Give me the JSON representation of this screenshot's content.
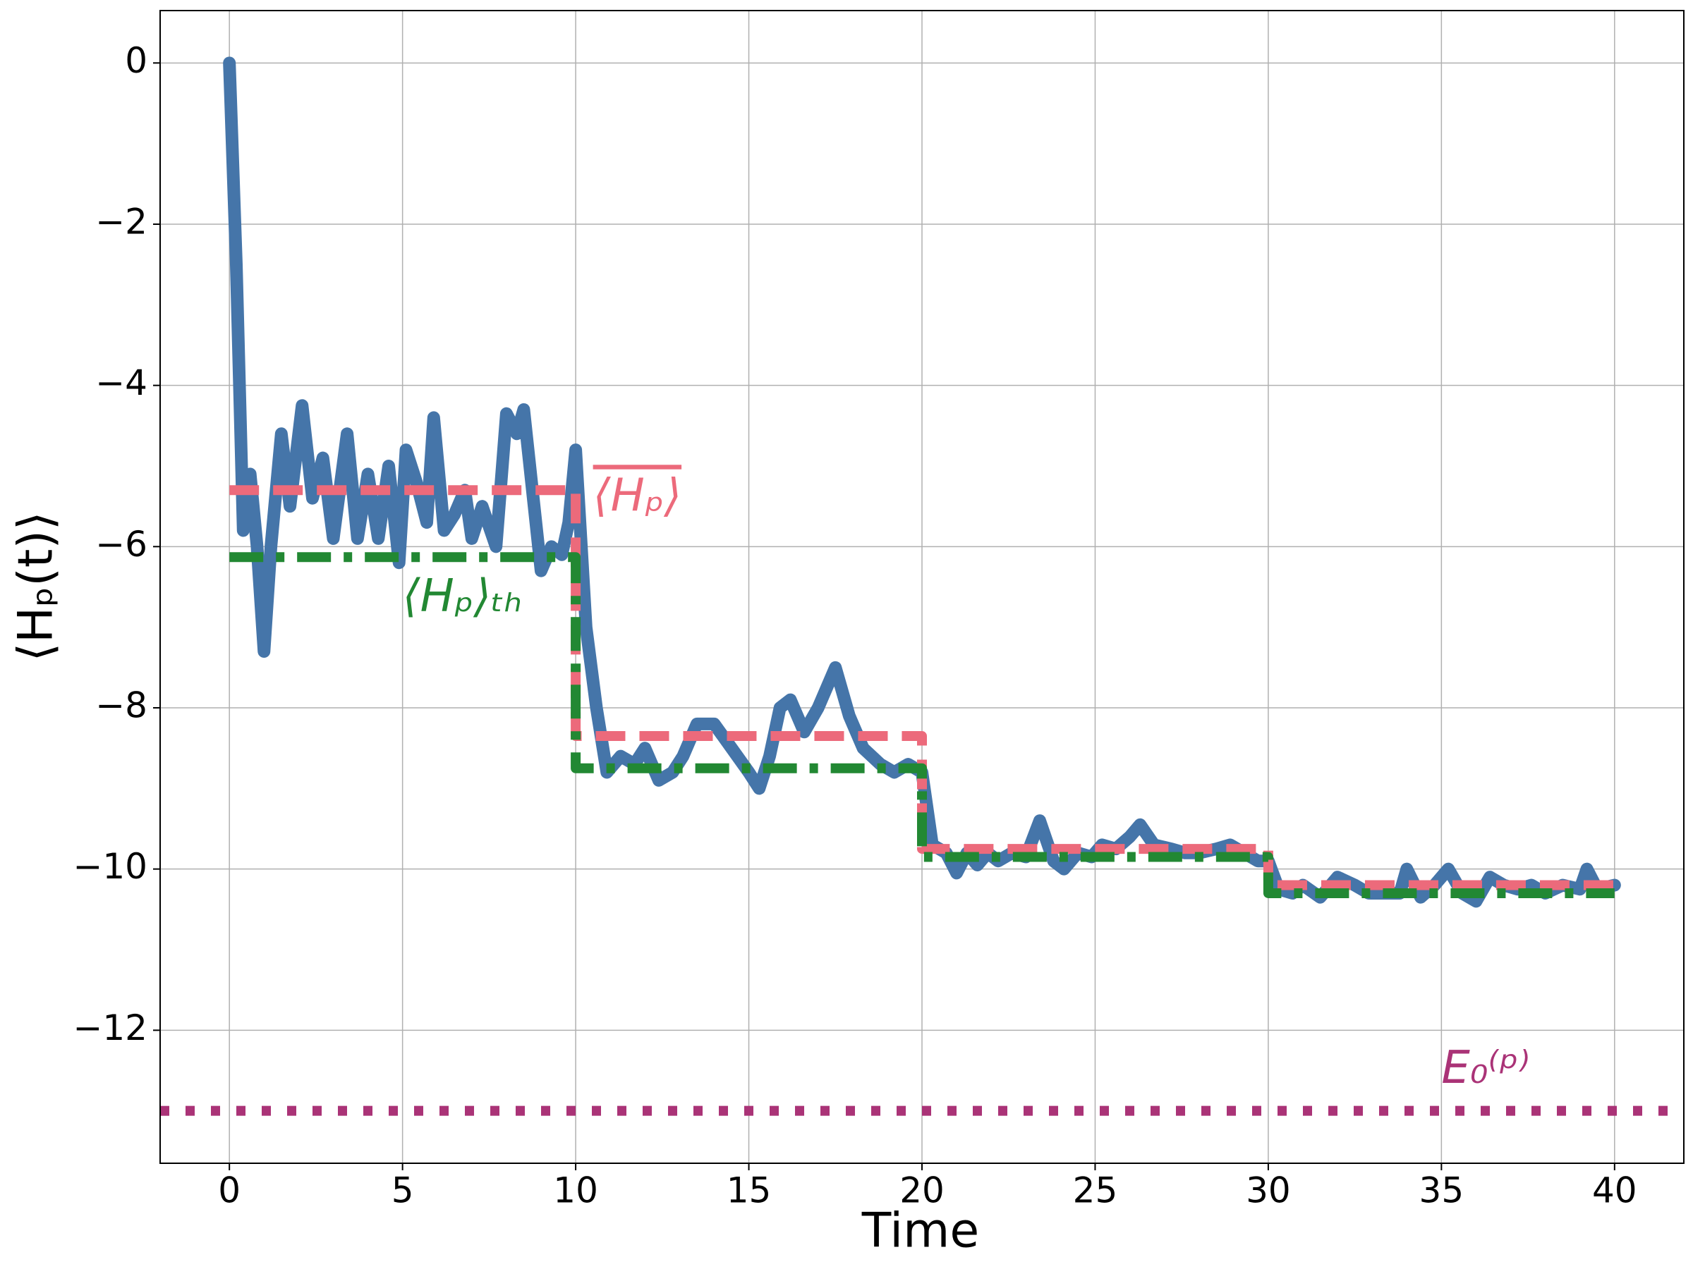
{
  "chart_data": {
    "type": "line",
    "xlabel": "Time",
    "ylabel": "⟨Hₚ(t)⟩",
    "xlim": [
      -2,
      42
    ],
    "ylim": [
      -13.65,
      0.65
    ],
    "xticks": [
      0,
      5,
      10,
      15,
      20,
      25,
      30,
      35,
      40
    ],
    "yticks": [
      0,
      {
        "value": -2,
        "label": "−2"
      },
      {
        "value": -4,
        "label": "−4"
      },
      {
        "value": -6,
        "label": "−6"
      },
      {
        "value": -8,
        "label": "−8"
      },
      {
        "value": -10,
        "label": "−10"
      },
      {
        "value": -12,
        "label": "−12"
      }
    ],
    "grid": true,
    "series": [
      {
        "color": "#4575a9",
        "style": "solid",
        "x": [
          0,
          0.2,
          0.4,
          0.6,
          0.8,
          1.0,
          1.2,
          1.5,
          1.75,
          2.1,
          2.4,
          2.7,
          3.0,
          3.4,
          3.7,
          4.0,
          4.3,
          4.6,
          4.9,
          5.1,
          5.4,
          5.7,
          5.9,
          6.2,
          6.5,
          6.8,
          7.0,
          7.3,
          7.7,
          8.0,
          8.3,
          8.5,
          8.8,
          9.0,
          9.3,
          9.6,
          9.8,
          10.0,
          10.3,
          10.6,
          10.9,
          11.3,
          11.7,
          12.0,
          12.4,
          12.8,
          13.1,
          13.5,
          14.0,
          14.5,
          15.0,
          15.3,
          15.6,
          15.9,
          16.2,
          16.6,
          17.0,
          17.5,
          17.9,
          18.3,
          18.8,
          19.2,
          19.6,
          20.0,
          20.3,
          20.7,
          21.0,
          21.3,
          21.6,
          21.9,
          22.2,
          22.6,
          23.0,
          23.4,
          23.8,
          24.1,
          24.5,
          24.9,
          25.2,
          25.6,
          26.0,
          26.3,
          26.7,
          27.2,
          27.6,
          28.0,
          28.5,
          28.9,
          29.3,
          29.7,
          30.0,
          30.3,
          30.7,
          31.0,
          31.5,
          32.0,
          32.5,
          32.9,
          33.3,
          33.8,
          34.0,
          34.4,
          34.8,
          35.2,
          35.6,
          36.0,
          36.4,
          36.8,
          37.2,
          37.6,
          38.0,
          38.5,
          39.0,
          39.2,
          39.5,
          40.0
        ],
        "values": [
          0,
          -2.5,
          -5.8,
          -5.1,
          -6.0,
          -7.3,
          -6.0,
          -4.6,
          -5.5,
          -4.25,
          -5.4,
          -4.9,
          -5.9,
          -4.6,
          -5.9,
          -5.1,
          -5.9,
          -5.0,
          -6.2,
          -4.8,
          -5.2,
          -5.7,
          -4.4,
          -5.8,
          -5.6,
          -5.3,
          -5.9,
          -5.5,
          -6.0,
          -4.35,
          -4.6,
          -4.3,
          -5.5,
          -6.3,
          -6.0,
          -6.1,
          -5.7,
          -4.8,
          -7.0,
          -8.0,
          -8.8,
          -8.6,
          -8.7,
          -8.5,
          -8.9,
          -8.8,
          -8.6,
          -8.2,
          -8.2,
          -8.5,
          -8.8,
          -9.0,
          -8.6,
          -8.0,
          -7.9,
          -8.3,
          -8.0,
          -7.5,
          -8.1,
          -8.5,
          -8.7,
          -8.8,
          -8.7,
          -8.8,
          -9.7,
          -9.8,
          -10.05,
          -9.8,
          -9.95,
          -9.8,
          -9.9,
          -9.8,
          -9.85,
          -9.4,
          -9.9,
          -10.0,
          -9.8,
          -9.85,
          -9.7,
          -9.75,
          -9.6,
          -9.45,
          -9.7,
          -9.75,
          -9.8,
          -9.8,
          -9.75,
          -9.7,
          -9.8,
          -9.9,
          -9.9,
          -10.25,
          -10.3,
          -10.2,
          -10.35,
          -10.1,
          -10.2,
          -10.3,
          -10.3,
          -10.3,
          -10.0,
          -10.35,
          -10.2,
          -10.0,
          -10.3,
          -10.4,
          -10.1,
          -10.2,
          -10.25,
          -10.2,
          -10.3,
          -10.2,
          -10.25,
          -10.0,
          -10.25,
          -10.2
        ]
      },
      {
        "color": "#ec6a7b",
        "style": "dashed",
        "x": [
          0,
          10,
          10,
          20,
          20,
          30,
          30,
          40
        ],
        "values": [
          -5.3,
          -5.3,
          -8.35,
          -8.35,
          -9.75,
          -9.75,
          -10.2,
          -10.2
        ]
      },
      {
        "color": "#228833",
        "style": "dashdot",
        "x": [
          0,
          10,
          10,
          20,
          20,
          30,
          30,
          40
        ],
        "values": [
          -6.13,
          -6.13,
          -8.75,
          -8.75,
          -9.85,
          -9.85,
          -10.3,
          -10.3
        ]
      },
      {
        "color": "#aa3377",
        "style": "dotted",
        "x": [
          -2,
          42
        ],
        "values": [
          -13,
          -13
        ]
      }
    ],
    "annotations": [
      {
        "text": "⟨Hₚ⟩",
        "x": 10.5,
        "y": -5.4,
        "color": "#ec6a7b",
        "overline": true
      },
      {
        "text": "⟨Hₚ⟩ₜₕ",
        "x": 5.0,
        "y": -6.65,
        "color": "#228833"
      },
      {
        "text": "E₀⁽ᵖ⁾",
        "x": 35.0,
        "y": -12.5,
        "color": "#aa3377"
      }
    ]
  }
}
